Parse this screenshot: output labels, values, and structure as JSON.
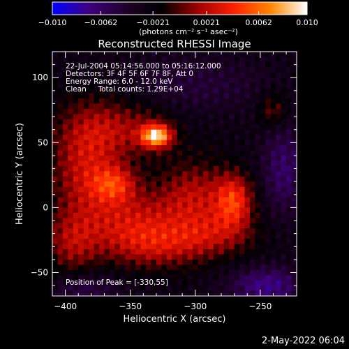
{
  "chart_data": {
    "type": "heatmap",
    "title": "Reconstructed RHESSI Image",
    "xlabel": "Heliocentric X (arcsec)",
    "ylabel": "Heliocentric Y (arcsec)",
    "xlim": [
      -410,
      -222
    ],
    "ylim": [
      -68,
      120
    ],
    "xticks": [
      -400,
      -350,
      -300,
      -250
    ],
    "yticks": [
      -50,
      0,
      50,
      100
    ],
    "xtick_labels": [
      "−400",
      "−350",
      "−300",
      "−250"
    ],
    "ytick_labels": [
      "−50",
      "0",
      "50",
      "100"
    ],
    "colorbar": {
      "range": [
        -0.01,
        0.01
      ],
      "ticks": [
        -0.01,
        -0.0062,
        -0.0021,
        0.0021,
        0.0062,
        0.01
      ],
      "tick_labels": [
        "−0.010",
        "−0.0062",
        "−0.0021",
        "0.0021",
        "0.0062",
        "0.010"
      ],
      "unit_label": "(photons cm⁻² s⁻¹ asec⁻²)",
      "colors": [
        "#0000ff",
        "#400080",
        "#20002a",
        "#000000",
        "#a00000",
        "#ff2000",
        "#ff8800",
        "#ffffff"
      ]
    },
    "annotations": [
      "22-Jul-2004 05:14:56.000 to 05:16:12.000",
      "Detectors: 3F 4F 5F 6F 7F 8F, Att 0",
      "Energy Range: 6.0 - 12.0 keV",
      "Clean     Total counts: 1.29E+04"
    ],
    "peak_label": "Position of Peak = [-330,55]",
    "peak": {
      "x": -330,
      "y": 55,
      "value": 0.01
    },
    "sources": [
      {
        "x": -330,
        "y": 55,
        "sx": 8,
        "sy": 6,
        "amp": 0.0105
      },
      {
        "x": -337,
        "y": 60,
        "sx": 18,
        "sy": 14,
        "amp": 0.0022
      },
      {
        "x": -375,
        "y": 60,
        "sx": 22,
        "sy": 18,
        "amp": 0.0042
      },
      {
        "x": -385,
        "y": 25,
        "sx": 18,
        "sy": 22,
        "amp": 0.0043
      },
      {
        "x": -362,
        "y": 18,
        "sx": 12,
        "sy": 10,
        "amp": 0.0052
      },
      {
        "x": -350,
        "y": -10,
        "sx": 30,
        "sy": 16,
        "amp": 0.0046
      },
      {
        "x": -300,
        "y": 10,
        "sx": 20,
        "sy": 18,
        "amp": 0.0042
      },
      {
        "x": -270,
        "y": 5,
        "sx": 10,
        "sy": 14,
        "amp": 0.0062
      },
      {
        "x": -285,
        "y": -20,
        "sx": 22,
        "sy": 12,
        "amp": 0.0034
      },
      {
        "x": -330,
        "y": -30,
        "sx": 28,
        "sy": 12,
        "amp": 0.004
      },
      {
        "x": -395,
        "y": -28,
        "sx": 14,
        "sy": 16,
        "amp": 0.0036
      },
      {
        "x": -240,
        "y": 75,
        "sx": 8,
        "sy": 10,
        "amp": 0.003
      },
      {
        "x": -245,
        "y": -60,
        "sx": 20,
        "sy": 10,
        "amp": -0.0045
      },
      {
        "x": -232,
        "y": 30,
        "sx": 12,
        "sy": 25,
        "amp": -0.0035
      },
      {
        "x": -385,
        "y": -62,
        "sx": 18,
        "sy": 8,
        "amp": -0.0025
      },
      {
        "x": -300,
        "y": 95,
        "sx": 40,
        "sy": 15,
        "amp": -0.002
      }
    ],
    "background": -0.0026
  },
  "footer": {
    "date": "2-May-2022 06:04"
  }
}
